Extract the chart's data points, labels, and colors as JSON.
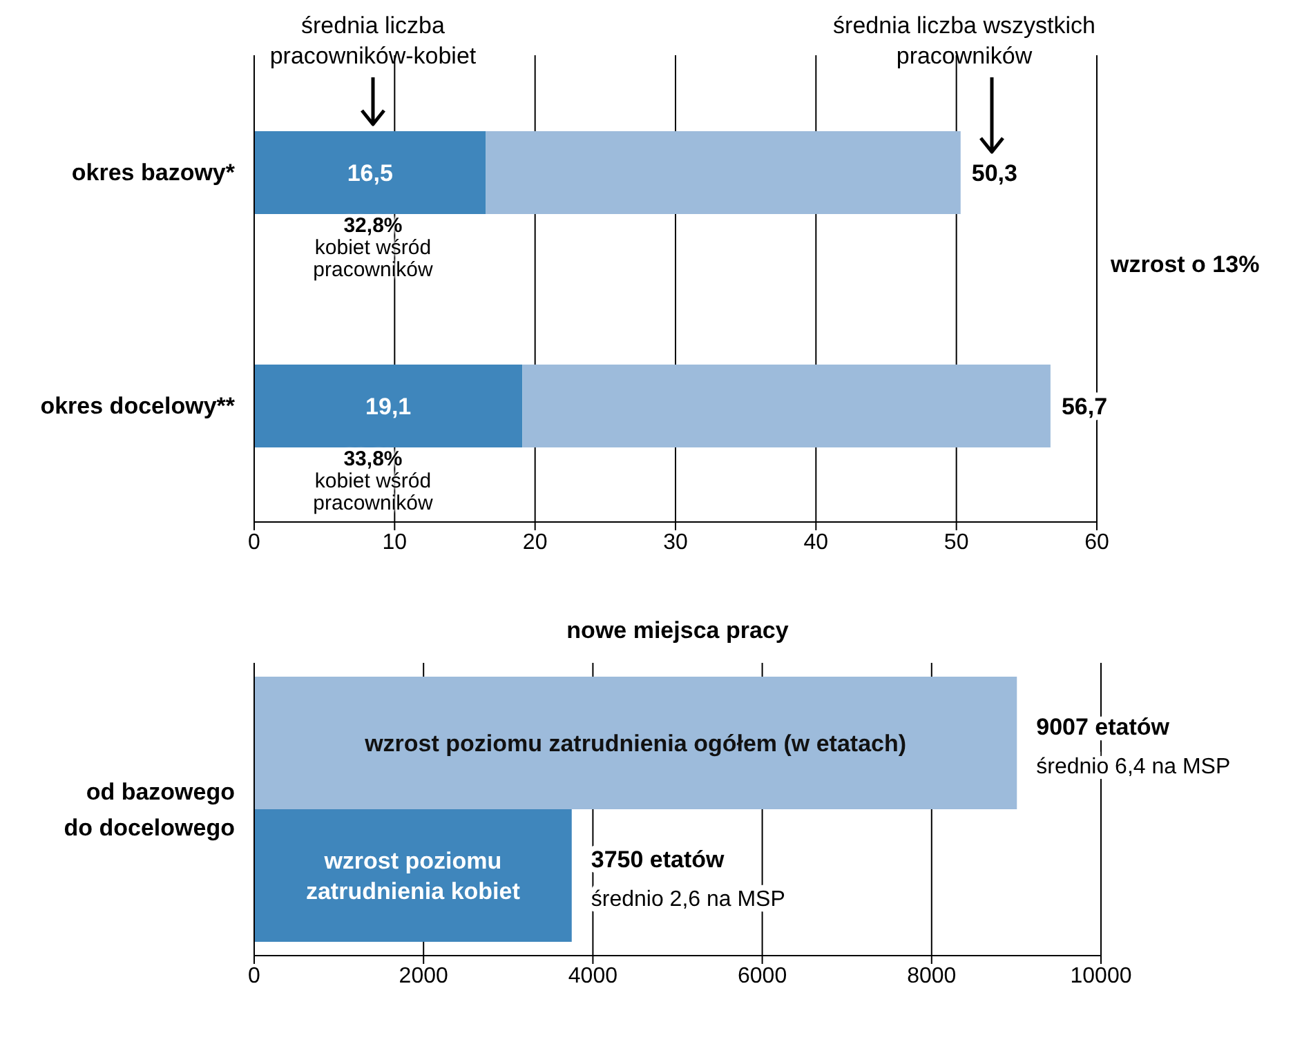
{
  "chart_data": [
    {
      "type": "bar",
      "orientation": "horizontal",
      "categories": [
        "okres bazowy*",
        "okres docelowy**"
      ],
      "stacked": true,
      "totals": [
        "50,3",
        "56,7"
      ],
      "series": [
        {
          "color": "#3f86bc",
          "values": [
            16.5,
            19.1
          ],
          "value_labels": [
            "16,5",
            "19,1"
          ]
        },
        {
          "color": "#9dbbdb",
          "values": [
            33.8,
            37.6
          ]
        }
      ],
      "xlim": [
        0,
        60
      ],
      "xticks": [
        0,
        10,
        20,
        30,
        40,
        50,
        60
      ],
      "grid": "x",
      "annotations": [
        "średnia liczba pracowników-kobiet",
        "średnia liczba wszystkich pracowników",
        "32,8% kobiet wśród pracowników",
        "33,8% kobiet wśród pracowników",
        "wzrost o 13%"
      ]
    },
    {
      "type": "bar",
      "orientation": "horizontal",
      "title": "nowe miejsca pracy",
      "categories": [
        "od bazowego do docelowego"
      ],
      "series": [
        {
          "name": "wzrost poziomu zatrudnienia ogółem (w etatach)",
          "color": "#9dbbdb",
          "values": [
            9007
          ],
          "value_labels": [
            "9007 etatów"
          ]
        },
        {
          "name": "wzrost poziomu zatrudnienia kobiet",
          "color": "#3f86bc",
          "values": [
            3750
          ],
          "value_labels": [
            "3750 etatów"
          ]
        }
      ],
      "xlim": [
        0,
        10000
      ],
      "xticks": [
        0,
        2000,
        4000,
        6000,
        8000,
        10000
      ],
      "grid": "x",
      "annotations": [
        "średnio 6,4 na MSP",
        "średnio 2,6 na MSP"
      ]
    }
  ]
}
